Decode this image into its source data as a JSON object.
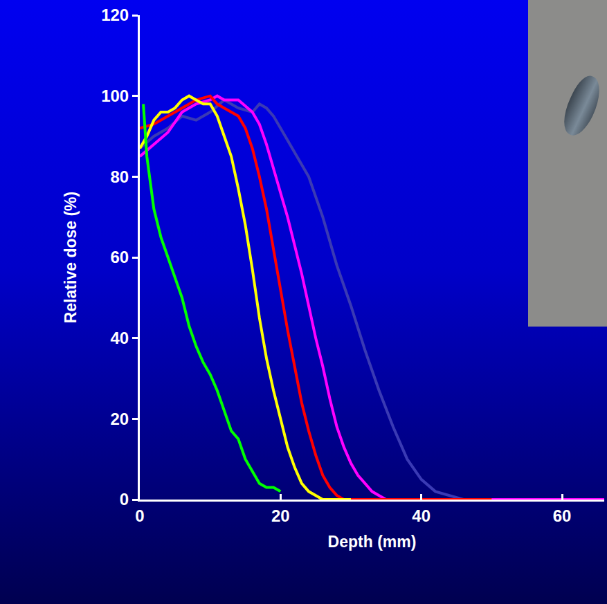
{
  "chart_data": {
    "type": "line",
    "x_label": "Depth (mm)",
    "y_label": "Relative dose (%)",
    "xlim": [
      0,
      66
    ],
    "xticks": [
      0,
      20,
      40,
      60
    ],
    "ylim": [
      0,
      120
    ],
    "yticks": [
      0,
      20,
      40,
      60,
      80,
      100,
      120
    ],
    "grid": false,
    "series": [
      {
        "color": "#3a3ab4",
        "x": [
          0,
          2,
          4,
          6,
          8,
          10,
          12,
          14,
          16,
          17,
          18,
          19,
          20,
          22,
          24,
          26,
          28,
          30,
          32,
          34,
          36,
          38,
          40,
          42,
          44,
          46,
          60
        ],
        "values": [
          87,
          90,
          92,
          95,
          94,
          96,
          99,
          97,
          96,
          98,
          97,
          95,
          92,
          86,
          80,
          70,
          58,
          48,
          37,
          27,
          18,
          10,
          5,
          2,
          1,
          0,
          0
        ]
      },
      {
        "color": "#ff00ff",
        "x": [
          0,
          2,
          4,
          6,
          8,
          10,
          11,
          12,
          14,
          16,
          17,
          18,
          19,
          20,
          21,
          22,
          23,
          24,
          25,
          26,
          27,
          28,
          29,
          30,
          31,
          32,
          33,
          34,
          35,
          40,
          66
        ],
        "values": [
          85,
          88,
          91,
          96,
          98,
          99,
          100,
          99,
          99,
          96,
          93,
          88,
          82,
          76,
          70,
          63,
          56,
          48,
          40,
          33,
          25,
          18,
          13,
          9,
          6,
          4,
          2,
          1,
          0,
          0,
          0
        ]
      },
      {
        "color": "#ff0000",
        "x": [
          0,
          2,
          4,
          6,
          8,
          10,
          11,
          12,
          13,
          14,
          15,
          16,
          17,
          18,
          19,
          20,
          21,
          22,
          23,
          24,
          25,
          26,
          27,
          28,
          29,
          30,
          50
        ],
        "values": [
          92,
          93,
          95,
          97,
          99,
          100,
          98,
          97,
          96,
          95,
          92,
          87,
          80,
          72,
          62,
          52,
          42,
          33,
          24,
          17,
          11,
          6,
          3,
          1,
          0,
          0,
          0
        ]
      },
      {
        "color": "#ffff00",
        "x": [
          0,
          1,
          2,
          3,
          4,
          5,
          6,
          7,
          8,
          9,
          10,
          11,
          12,
          13,
          14,
          15,
          16,
          17,
          18,
          19,
          20,
          21,
          22,
          23,
          24,
          25,
          26,
          30
        ],
        "values": [
          87,
          90,
          94,
          96,
          96,
          97,
          99,
          100,
          99,
          98,
          98,
          95,
          90,
          85,
          77,
          68,
          57,
          45,
          35,
          27,
          20,
          13,
          8,
          4,
          2,
          1,
          0,
          0
        ]
      },
      {
        "color": "#00ff00",
        "x": [
          0.5,
          1,
          2,
          3,
          4,
          5,
          6,
          7,
          8,
          9,
          10,
          11,
          12,
          13,
          14,
          15,
          16,
          17,
          18,
          19,
          20
        ],
        "values": [
          98,
          85,
          72,
          65,
          60,
          55,
          50,
          43,
          38,
          34,
          31,
          27,
          22,
          17,
          15,
          10,
          7,
          4,
          3,
          3,
          2
        ]
      }
    ]
  }
}
